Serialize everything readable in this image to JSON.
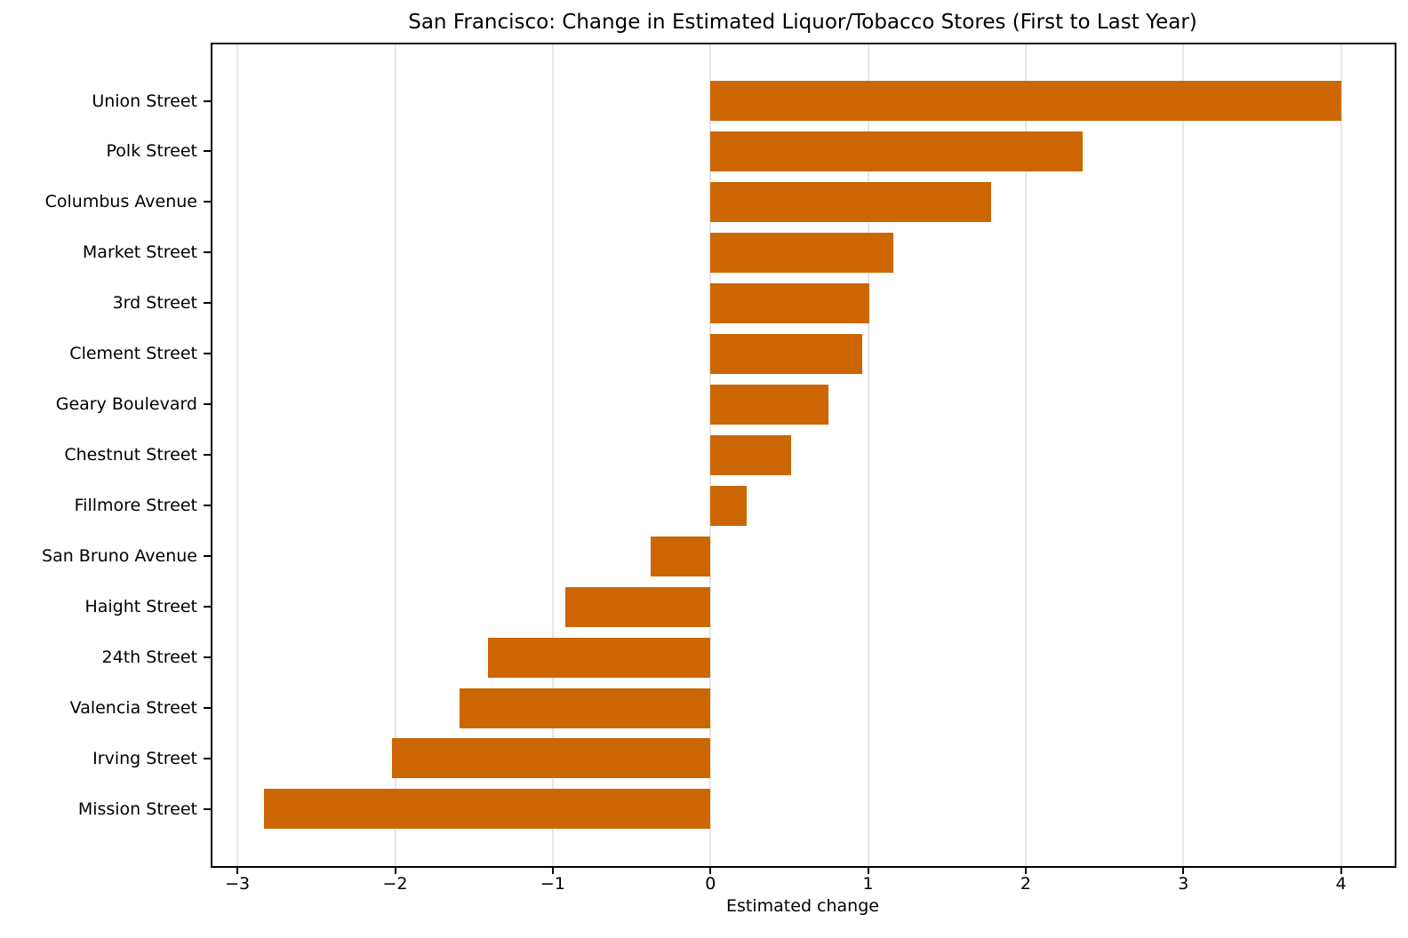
{
  "chart_data": {
    "type": "bar",
    "orientation": "horizontal",
    "title": "San Francisco: Change in Estimated Liquor/Tobacco Stores (First to Last Year)",
    "xlabel": "Estimated change",
    "ylabel": "",
    "xlim": [
      -3.17,
      4.34
    ],
    "xticks": [
      -3,
      -2,
      -1,
      0,
      1,
      2,
      3,
      4
    ],
    "xtick_labels": [
      "−3",
      "−2",
      "−1",
      "0",
      "1",
      "2",
      "3",
      "4"
    ],
    "grid": {
      "x": true,
      "y": false,
      "color": "#e6e6e6"
    },
    "bar_color": "#cc6600",
    "legend": null,
    "categories": [
      "Union Street",
      "Polk Street",
      "Columbus Avenue",
      "Market Street",
      "3rd Street",
      "Clement Street",
      "Geary Boulevard",
      "Chestnut Street",
      "Fillmore Street",
      "San Bruno Avenue",
      "Haight Street",
      "24th Street",
      "Valencia Street",
      "Irving Street",
      "Mission Street"
    ],
    "values": [
      4.0,
      2.36,
      1.78,
      1.16,
      1.01,
      0.96,
      0.75,
      0.51,
      0.23,
      -0.38,
      -0.92,
      -1.41,
      -1.59,
      -2.02,
      -2.83
    ]
  }
}
